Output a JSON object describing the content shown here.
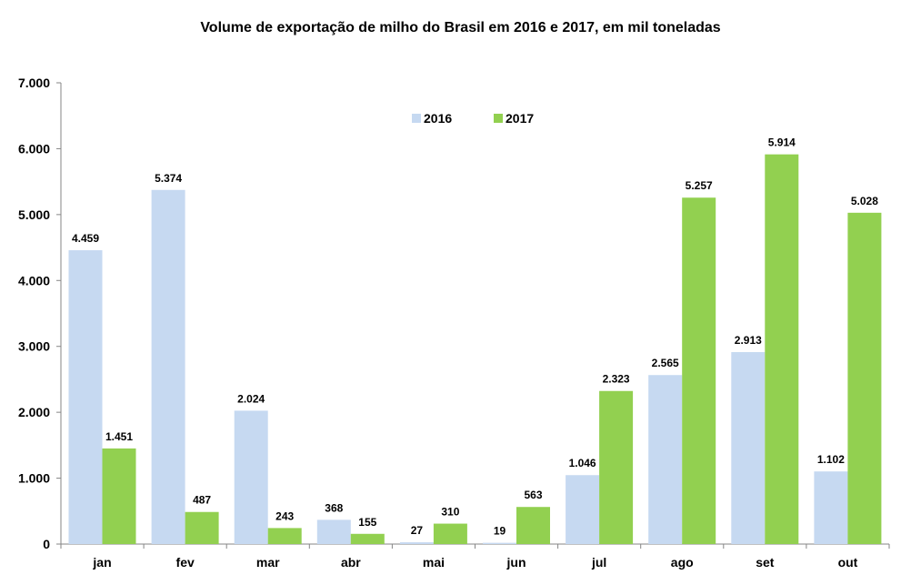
{
  "chart_data": {
    "type": "bar",
    "title": "Volume de exportação de milho do Brasil em 2016 e 2017, em mil toneladas",
    "categories": [
      "jan",
      "fev",
      "mar",
      "abr",
      "mai",
      "jun",
      "jul",
      "ago",
      "set",
      "out"
    ],
    "series": [
      {
        "name": "2016",
        "color": "#c6d9f1",
        "values": [
          4459,
          5374,
          2024,
          368,
          27,
          19,
          1046,
          2565,
          2913,
          1102
        ],
        "labels": [
          "4.459",
          "5.374",
          "2.024",
          "368",
          "27",
          "19",
          "1.046",
          "2.565",
          "2.913",
          "1.102"
        ]
      },
      {
        "name": "2017",
        "color": "#92d050",
        "values": [
          1451,
          487,
          243,
          155,
          310,
          563,
          2323,
          5257,
          5914,
          5028
        ],
        "labels": [
          "1.451",
          "487",
          "243",
          "155",
          "310",
          "563",
          "2.323",
          "5.257",
          "5.914",
          "5.028"
        ]
      }
    ],
    "ylim": [
      0,
      7000
    ],
    "yticks": [
      {
        "value": 0,
        "label": "0"
      },
      {
        "value": 1000,
        "label": "1.000"
      },
      {
        "value": 2000,
        "label": "2.000"
      },
      {
        "value": 3000,
        "label": "3.000"
      },
      {
        "value": 4000,
        "label": "4.000"
      },
      {
        "value": 5000,
        "label": "5.000"
      },
      {
        "value": 6000,
        "label": "6.000"
      },
      {
        "value": 7000,
        "label": "7.000"
      }
    ],
    "grid": false,
    "legend_position": "top-center"
  }
}
